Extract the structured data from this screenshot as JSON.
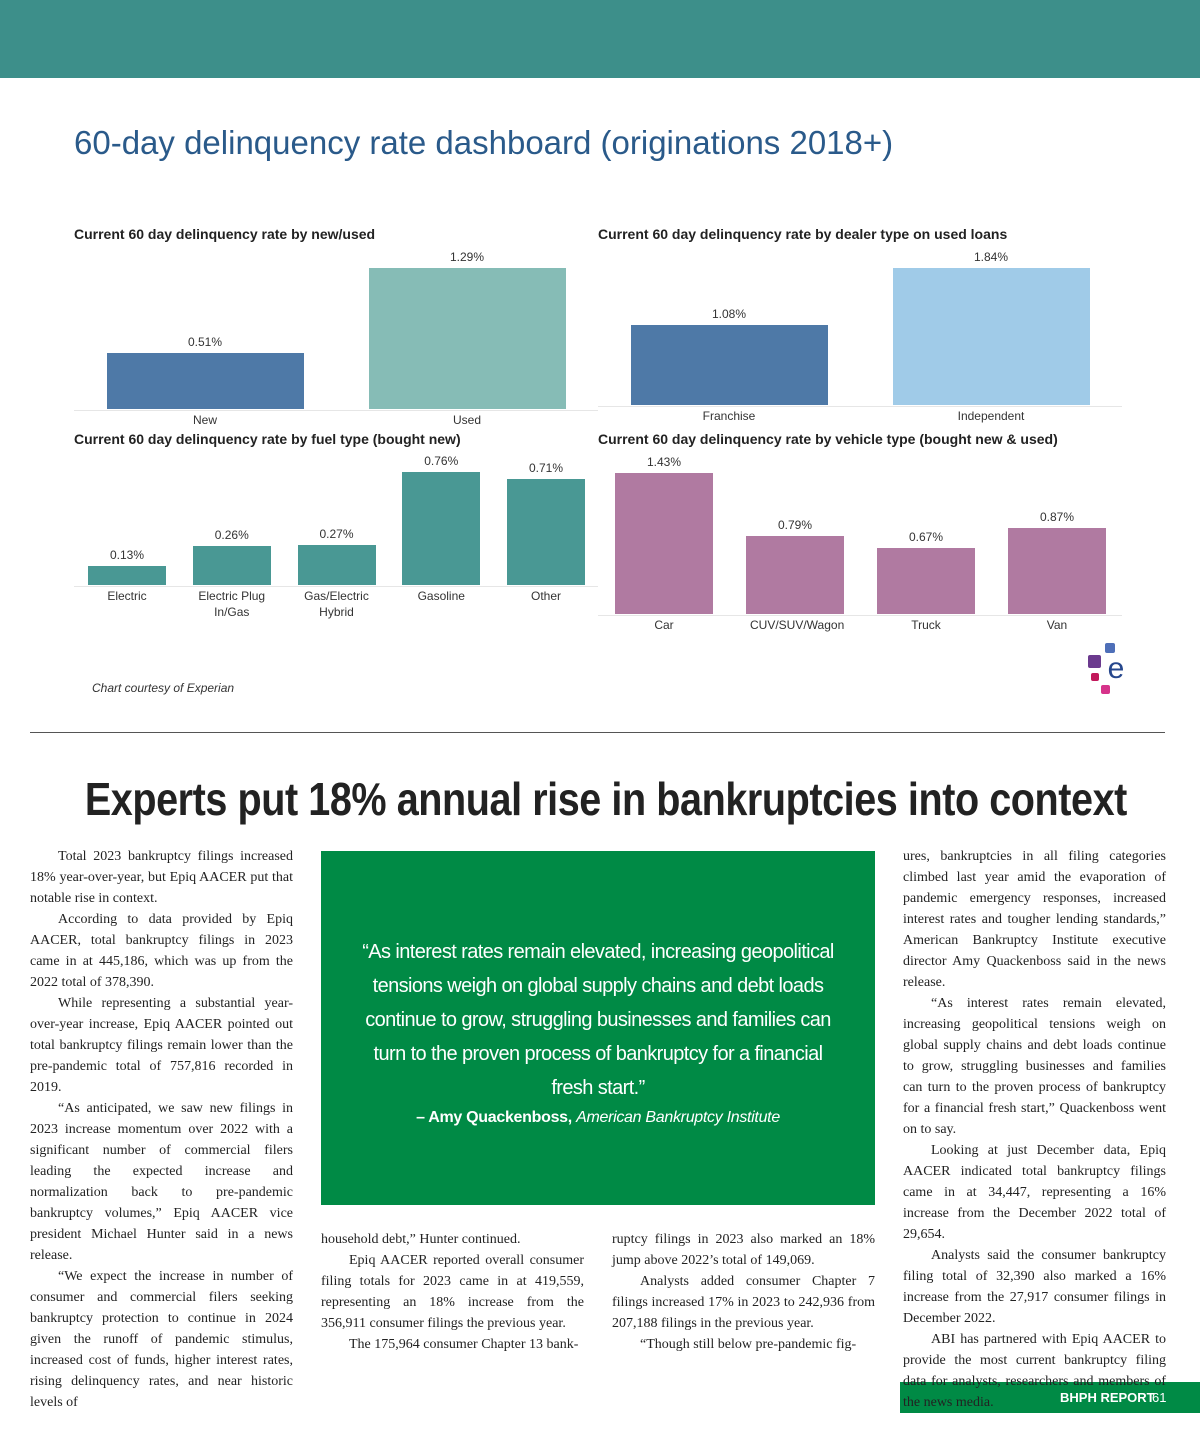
{
  "dashboard": {
    "title": "60-day delinquency rate dashboard (originations 2018+)",
    "courtesy": "Chart courtesy of Experian"
  },
  "chart_data": [
    {
      "type": "bar",
      "title": "Current 60 day delinquency rate by new/used",
      "categories": [
        "New",
        "Used"
      ],
      "values": [
        0.51,
        1.29
      ],
      "value_labels": [
        "0.51%",
        "1.29%"
      ],
      "colors": [
        "#4e79a7",
        "#86bcb6"
      ]
    },
    {
      "type": "bar",
      "title": "Current 60 day delinquency rate by dealer type on used loans",
      "categories": [
        "Franchise",
        "Independent"
      ],
      "values": [
        1.08,
        1.84
      ],
      "value_labels": [
        "1.08%",
        "1.84%"
      ],
      "colors": [
        "#4e79a7",
        "#a0cbe8"
      ]
    },
    {
      "type": "bar",
      "title": "Current 60 day delinquency rate by fuel type (bought new)",
      "categories": [
        "Electric",
        "Electric Plug In/Gas",
        "Gas/Electric Hybrid",
        "Gasoline",
        "Other"
      ],
      "values": [
        0.13,
        0.26,
        0.27,
        0.76,
        0.71
      ],
      "value_labels": [
        "0.13%",
        "0.26%",
        "0.27%",
        "0.76%",
        "0.71%"
      ],
      "colors": [
        "#499894",
        "#499894",
        "#499894",
        "#499894",
        "#499894"
      ]
    },
    {
      "type": "bar",
      "title": "Current 60 day delinquency rate by vehicle type (bought new & used)",
      "categories": [
        "Car",
        "CUV/SUV/Wagon",
        "Truck",
        "Van"
      ],
      "values": [
        1.43,
        0.79,
        0.67,
        0.87
      ],
      "value_labels": [
        "1.43%",
        "0.79%",
        "0.67%",
        "0.87%"
      ],
      "colors": [
        "#b07aa1",
        "#b07aa1",
        "#b07aa1",
        "#b07aa1"
      ]
    }
  ],
  "article": {
    "headline": "Experts put 18% annual rise in bankruptcies into context",
    "columns": [
      [
        "Total 2023 bankruptcy filings increased 18% year-over-year, but Epiq AACER put that notable rise in context.",
        "According to data provided by Epiq AACER, total bankruptcy filings in 2023 came in at 445,186, which was up from the 2022 total of 378,390.",
        "While representing a substantial year-over-year increase, Epiq AACER pointed out total bankruptcy filings remain lower than the pre-pandemic total of 757,816 recorded in 2019.",
        "“As anticipated, we saw new filings in 2023 increase momentum over 2022 with a significant number of commercial filers leading the expected increase and normalization back to pre-pandemic bankruptcy volumes,” Epiq AACER vice president Michael Hunter said in a news release.",
        "“We expect the increase in number of consumer and commercial filers seeking bankruptcy protection to continue in 2024 given the runoff of pandemic stimulus, increased cost of funds, higher interest rates, rising delinquency rates, and near historic levels of"
      ],
      [
        "household debt,” Hunter continued.",
        "Epiq AACER reported overall consumer filing totals for 2023 came in at 419,559, representing an 18% increase from the 356,911 consumer filings the previous year.",
        "The 175,964 consumer Chapter 13 bank-"
      ],
      [
        "ruptcy filings in 2023 also marked an 18% jump above 2022’s total of 149,069.",
        "Analysts added consumer Chapter 7 filings increased 17% in 2023 to 242,936 from 207,188 filings in the previous year.",
        "“Though still below pre-pandemic fig-"
      ],
      [
        "ures, bankruptcies in all filing categories climbed last year amid the evaporation of pandemic emergency responses, increased interest rates and tougher lending standards,” American Bankruptcy Institute executive director Amy Quackenboss said in the news release.",
        "“As interest rates remain elevated, increasing geopolitical tensions weigh on global supply chains and debt loads continue to grow, struggling businesses and families can turn to the proven process of bankruptcy for a financial fresh start,” Quackenboss went on to say.",
        "Looking at just December data, Epiq AACER indicated total bankruptcy filings came in at 34,447, representing a 16% increase from the December 2022 total of 29,654.",
        "Analysts said the consumer bankruptcy filing total of 32,390 also marked a 16% increase from the 27,917 consumer filings in December 2022.",
        "ABI has partnered with Epiq AACER to provide the most current bankruptcy filing data for analysts, researchers and members of the news media."
      ]
    ],
    "pull_quote": {
      "text": "“As interest rates remain elevated, increasing geopolitical tensions weigh on global supply chains and debt loads continue to grow, struggling businesses and families can turn to the proven process of bankruptcy for a financial fresh start.”",
      "name": "– Amy Quackenboss,",
      "organization": "American Bankruptcy Institute"
    }
  },
  "footer": {
    "publication": "BHPH REPORT",
    "page": "61"
  }
}
